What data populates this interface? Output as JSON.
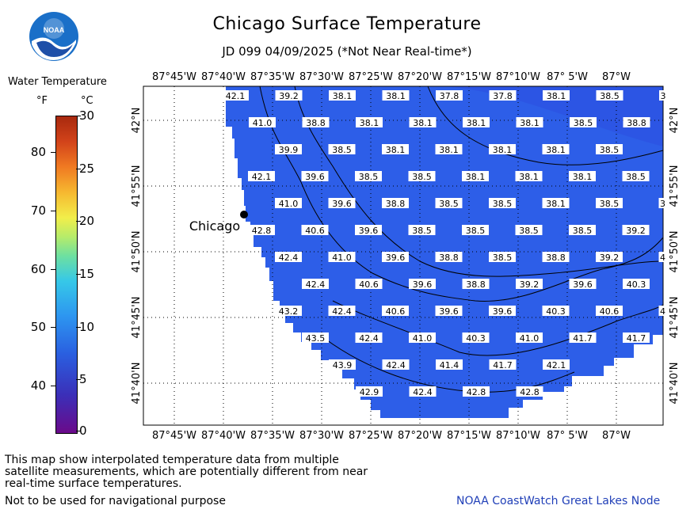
{
  "header": {
    "title": "Chicago Surface Temperature",
    "subtitle": "JD 099 04/09/2025 (*Not Near Real-time*)",
    "logo_text": "NOAA"
  },
  "legend": {
    "title": "Water Temperature",
    "unit_f": "°F",
    "unit_c": "°C",
    "f_ticks": [
      "80",
      "70",
      "60",
      "50",
      "40"
    ],
    "c_ticks": [
      "30",
      "25",
      "20",
      "15",
      "10",
      "5",
      "0"
    ]
  },
  "map": {
    "city_label": "Chicago",
    "lon_labels": [
      "87°45'W",
      "87°40'W",
      "87°35'W",
      "87°30'W",
      "87°25'W",
      "87°20'W",
      "87°15'W",
      "87°10'W",
      "87° 5'W",
      "87°W"
    ],
    "lat_labels": [
      "42°N",
      "41°55'N",
      "41°50'N",
      "41°45'N",
      "41°40'N"
    ],
    "water_color": "#2d5ee8",
    "rows": [
      [
        "42.1",
        "39.2",
        "38.1",
        "38.1",
        "37.8",
        "37.8",
        "38.1",
        "38.5",
        "3"
      ],
      [
        "41.0",
        "38.8",
        "38.1",
        "38.1",
        "38.1",
        "38.1",
        "38.5",
        "38.8"
      ],
      [
        "39.9",
        "38.5",
        "38.1",
        "38.1",
        "38.1",
        "38.1",
        "38.5",
        ""
      ],
      [
        "42.1",
        "39.6",
        "38.5",
        "38.5",
        "38.1",
        "38.1",
        "38.1",
        "38.5"
      ],
      [
        "41.0",
        "39.6",
        "38.8",
        "38.5",
        "38.5",
        "38.1",
        "38.5",
        "3"
      ],
      [
        "42.8",
        "40.6",
        "39.6",
        "38.5",
        "38.5",
        "38.5",
        "38.5",
        "39.2"
      ],
      [
        "42.4",
        "41.0",
        "39.6",
        "38.8",
        "38.5",
        "38.8",
        "39.2",
        "4"
      ],
      [
        "42.4",
        "40.6",
        "39.6",
        "38.8",
        "39.2",
        "39.6",
        "40.3"
      ],
      [
        "43.2",
        "42.4",
        "40.6",
        "39.6",
        "39.6",
        "40.3",
        "40.6",
        "4"
      ],
      [
        "43.5",
        "42.4",
        "41.0",
        "40.3",
        "41.0",
        "41.7",
        "41.7"
      ],
      [
        "43.9",
        "42.4",
        "41.4",
        "41.7",
        "42.1"
      ],
      [
        "42.9",
        "42.4",
        "42.8",
        "42.8"
      ]
    ]
  },
  "footer": {
    "note": "This map show interpolated temperature data from multiple satellite measurements, which are potentially different from near real-time surface temperatures.",
    "nav_note": "Not to be used for navigational purpose",
    "credit": "NOAA CoastWatch Great Lakes Node"
  }
}
